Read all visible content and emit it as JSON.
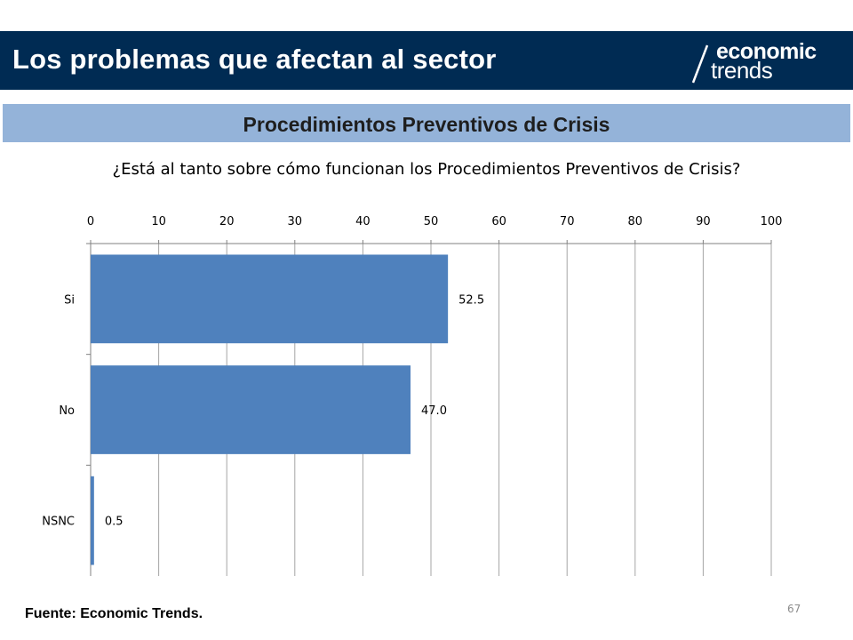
{
  "header": {
    "title": "Los problemas que afectan al sector",
    "logo_top": "economic",
    "logo_bottom": "trends"
  },
  "section": {
    "title": "Procedimientos Preventivos de Crisis"
  },
  "question": "¿Está al tanto sobre cómo funcionan los Procedimientos Preventivos de Crisis?",
  "footer": {
    "source": "Fuente: Economic Trends.",
    "page_number": "67"
  },
  "colors": {
    "header_bg": "#002b53",
    "band_bg": "#94b3d9",
    "bar": "#4f81bd",
    "grid": "#a6a6a6"
  },
  "chart_data": {
    "type": "bar",
    "orientation": "horizontal",
    "categories": [
      "Si",
      "No",
      "NSNC"
    ],
    "values": [
      52.5,
      47.0,
      0.5
    ],
    "value_labels": [
      "52.5",
      "47.0",
      "0.5"
    ],
    "xlim": [
      0,
      100
    ],
    "xticks": [
      0,
      10,
      20,
      30,
      40,
      50,
      60,
      70,
      80,
      90,
      100
    ],
    "x_axis_position": "top",
    "grid": true
  }
}
